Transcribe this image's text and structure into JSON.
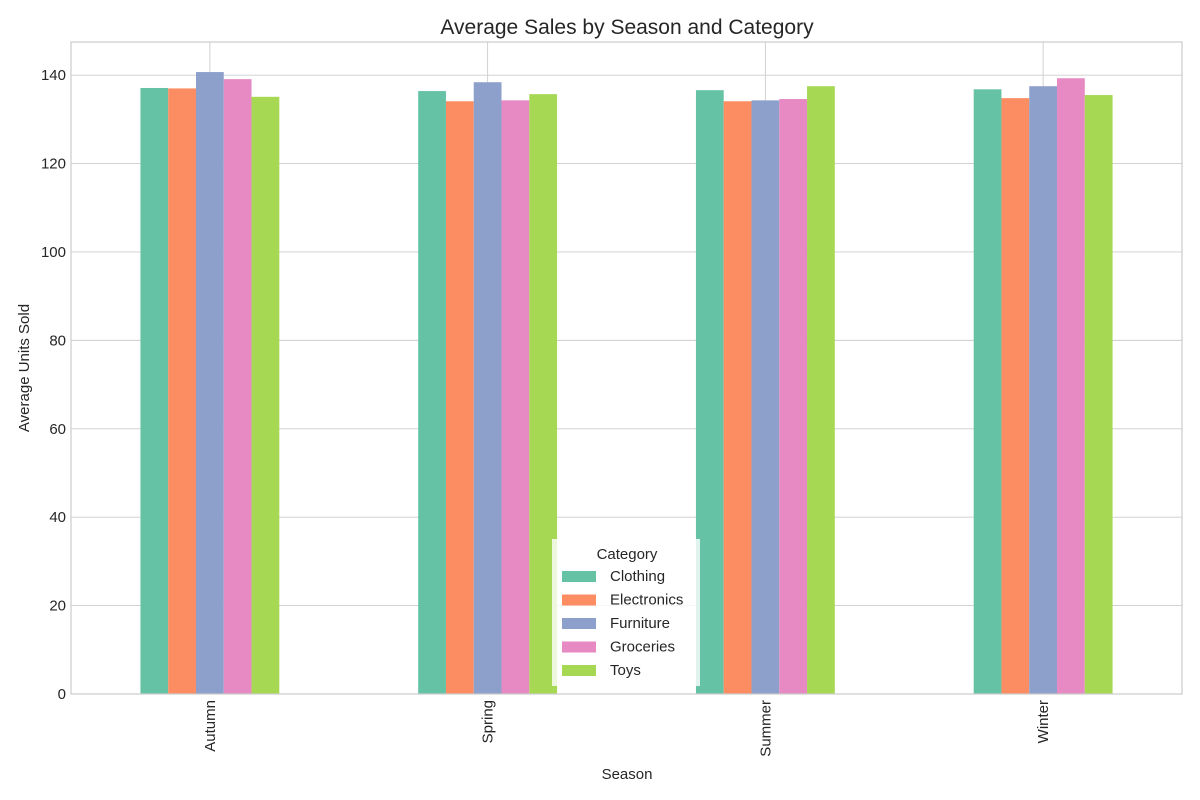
{
  "chart_data": {
    "type": "bar",
    "title": "Average Sales by Season and Category",
    "xlabel": "Season",
    "ylabel": "Average Units Sold",
    "categories": [
      "Autumn",
      "Spring",
      "Summer",
      "Winter"
    ],
    "yticks": [
      "0",
      "20",
      "40",
      "60",
      "80",
      "100",
      "120",
      "140"
    ],
    "ylim": [
      0,
      147.5
    ],
    "grid": true,
    "legend": {
      "title": "Category",
      "placement": "lower-center"
    },
    "series": [
      {
        "name": "Clothing",
        "color": "#66c2a5",
        "values": [
          137.1,
          136.4,
          136.6,
          136.8
        ]
      },
      {
        "name": "Electronics",
        "color": "#fc8d62",
        "values": [
          137.0,
          134.1,
          134.1,
          134.8
        ]
      },
      {
        "name": "Furniture",
        "color": "#8da0cb",
        "values": [
          140.7,
          138.4,
          134.3,
          137.5
        ]
      },
      {
        "name": "Groceries",
        "color": "#e78ac3",
        "values": [
          139.1,
          134.3,
          134.6,
          139.3
        ]
      },
      {
        "name": "Toys",
        "color": "#a6d854",
        "values": [
          135.1,
          135.7,
          137.5,
          135.5
        ]
      }
    ]
  }
}
